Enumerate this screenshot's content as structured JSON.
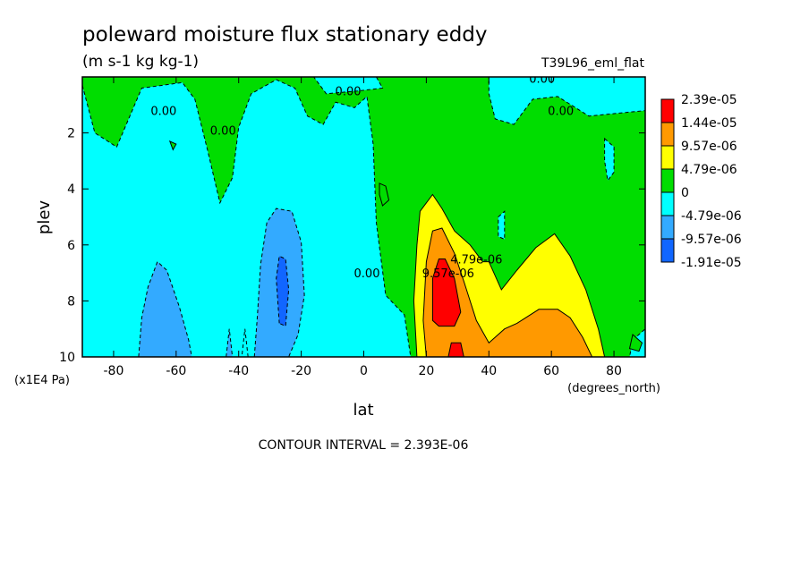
{
  "chart_data": {
    "type": "heatmap",
    "title": "poleward moisture flux stationary eddy",
    "subtitle": "(m s-1 kg kg-1)",
    "run_label": "T39L96_eml_flat",
    "xlabel": "lat",
    "xunits": "(degrees_north)",
    "ylabel": "plev",
    "yunits": "(x1E4 Pa)",
    "footer": "CONTOUR INTERVAL = 2.393E-06",
    "xlim": [
      -90,
      90
    ],
    "ylim": [
      10,
      0
    ],
    "x_ticks": [
      -80,
      -60,
      -40,
      -20,
      0,
      20,
      40,
      60,
      80
    ],
    "y_ticks": [
      2,
      4,
      6,
      8,
      10
    ],
    "colorbar": {
      "labels": [
        "2.39e-05",
        "1.44e-05",
        "9.57e-06",
        "4.79e-06",
        "0",
        "-4.79e-06",
        "-9.57e-06",
        "-1.91e-05"
      ],
      "colors": [
        "#ff0000",
        "#ff9900",
        "#ffff00",
        "#00dd00",
        "#00ffff",
        "#33aaff",
        "#1166ff"
      ]
    },
    "contour_labels": [
      {
        "text": "0.00",
        "lat": -64,
        "plev": 1.2
      },
      {
        "text": "0.00",
        "lat": -45,
        "plev": 1.9
      },
      {
        "text": "0.00",
        "lat": -5,
        "plev": 0.5
      },
      {
        "text": "0.00",
        "lat": 1,
        "plev": 7.0
      },
      {
        "text": "0.00",
        "lat": 57,
        "plev": 0.05
      },
      {
        "text": "0.00",
        "lat": 63,
        "plev": 1.2
      },
      {
        "text": "9.57e-06",
        "lat": 27,
        "plev": 7.0
      },
      {
        "text": "4.79e-06",
        "lat": 36,
        "plev": 6.5
      }
    ],
    "fields": [
      {
        "level": "0",
        "color": "#00dd00",
        "points": [
          [
            -90,
            0
          ],
          [
            90,
            0
          ],
          [
            90,
            10
          ],
          [
            -90,
            10
          ]
        ]
      },
      {
        "level": "-4.79e-06",
        "color": "#00ffff",
        "points": [
          [
            -90,
            0.3
          ],
          [
            -86,
            2.0
          ],
          [
            -79,
            2.5
          ],
          [
            -71,
            0.4
          ],
          [
            -58,
            0.2
          ],
          [
            -54,
            0.8
          ],
          [
            -50,
            2.6
          ],
          [
            -46,
            4.5
          ],
          [
            -42,
            3.6
          ],
          [
            -40,
            1.8
          ],
          [
            -36,
            0.6
          ],
          [
            -28,
            0.1
          ],
          [
            -22,
            0.4
          ],
          [
            -18,
            1.4
          ],
          [
            -13,
            1.7
          ],
          [
            -9,
            0.9
          ],
          [
            -3,
            1.1
          ],
          [
            1,
            0.7
          ],
          [
            3,
            2.4
          ],
          [
            4,
            5.2
          ],
          [
            7,
            7.8
          ],
          [
            13,
            8.5
          ],
          [
            15,
            10
          ],
          [
            -90,
            10
          ]
        ]
      },
      {
        "level": "-4.79e-06",
        "color": "#00ffff",
        "points": [
          [
            -16,
            0.0
          ],
          [
            4,
            0.0
          ],
          [
            6,
            0.4
          ],
          [
            -2,
            0.5
          ],
          [
            -12,
            0.6
          ]
        ]
      },
      {
        "level": "-4.79e-06",
        "color": "#00ffff",
        "points": [
          [
            40,
            0
          ],
          [
            90,
            0
          ],
          [
            90,
            1.2
          ],
          [
            72,
            1.4
          ],
          [
            62,
            0.7
          ],
          [
            54,
            0.8
          ],
          [
            48,
            1.7
          ],
          [
            42,
            1.5
          ],
          [
            40,
            0.6
          ]
        ]
      },
      {
        "level": "-4.79e-06",
        "color": "#00ffff",
        "points": [
          [
            86,
            9.4
          ],
          [
            90,
            9.0
          ],
          [
            90,
            10
          ],
          [
            85,
            10
          ]
        ]
      },
      {
        "level": "-9.57e-06",
        "color": "#33aaff",
        "points": [
          [
            -72,
            10
          ],
          [
            -71,
            8.6
          ],
          [
            -69,
            7.5
          ],
          [
            -66,
            6.6
          ],
          [
            -63,
            6.9
          ],
          [
            -59,
            8.2
          ],
          [
            -56,
            9.4
          ],
          [
            -55,
            10
          ]
        ]
      },
      {
        "level": "-9.57e-06",
        "color": "#33aaff",
        "points": [
          [
            -35,
            10
          ],
          [
            -34,
            8.5
          ],
          [
            -33,
            6.7
          ],
          [
            -31,
            5.2
          ],
          [
            -28,
            4.7
          ],
          [
            -23,
            4.8
          ],
          [
            -20,
            5.9
          ],
          [
            -19,
            7.8
          ],
          [
            -21,
            9.2
          ],
          [
            -24,
            10
          ]
        ]
      },
      {
        "level": "-9.57e-06",
        "color": "#33aaff",
        "points": [
          [
            -44,
            10
          ],
          [
            -43,
            9.0
          ],
          [
            -42,
            10
          ]
        ]
      },
      {
        "level": "-1.91e-05",
        "color": "#1166ff",
        "points": [
          [
            -27,
            8.8
          ],
          [
            -28,
            7.2
          ],
          [
            -27,
            6.4
          ],
          [
            -25,
            6.5
          ],
          [
            -24,
            7.6
          ],
          [
            -25,
            8.9
          ]
        ]
      },
      {
        "level": "4.79e-06",
        "color": "#ffff00",
        "points": [
          [
            17,
            10
          ],
          [
            16,
            8.0
          ],
          [
            17,
            6.0
          ],
          [
            18,
            4.8
          ],
          [
            22,
            4.2
          ],
          [
            25,
            4.7
          ],
          [
            29,
            5.5
          ],
          [
            34,
            6.0
          ],
          [
            38,
            6.6
          ],
          [
            40,
            6.6
          ],
          [
            44,
            7.6
          ],
          [
            49,
            6.9
          ],
          [
            55,
            6.1
          ],
          [
            61,
            5.6
          ],
          [
            66,
            6.4
          ],
          [
            71,
            7.6
          ],
          [
            75,
            9.0
          ],
          [
            77,
            10
          ]
        ]
      },
      {
        "level": "9.57e-06",
        "color": "#ff9900",
        "points": [
          [
            20,
            10
          ],
          [
            19,
            8.7
          ],
          [
            20,
            6.6
          ],
          [
            22,
            5.5
          ],
          [
            25,
            5.4
          ],
          [
            29,
            6.3
          ],
          [
            32,
            7.3
          ],
          [
            36,
            8.7
          ],
          [
            40,
            9.5
          ],
          [
            45,
            9.0
          ],
          [
            49,
            8.8
          ],
          [
            56,
            8.3
          ],
          [
            62,
            8.3
          ],
          [
            66,
            8.6
          ],
          [
            70,
            9.3
          ],
          [
            73,
            10
          ]
        ]
      },
      {
        "level": "1.44e-05",
        "color": "#ff0000",
        "points": [
          [
            22,
            8.7
          ],
          [
            22,
            7.2
          ],
          [
            24,
            6.5
          ],
          [
            26,
            6.5
          ],
          [
            29,
            7.2
          ],
          [
            31,
            8.4
          ],
          [
            29,
            8.9
          ],
          [
            24,
            8.9
          ]
        ]
      },
      {
        "level": "1.44e-05",
        "color": "#ff0000",
        "points": [
          [
            27,
            10
          ],
          [
            28,
            9.5
          ],
          [
            31,
            9.5
          ],
          [
            32,
            10
          ]
        ]
      },
      {
        "level": "0",
        "color": "#00dd00",
        "points": [
          [
            -62,
            2.3
          ],
          [
            -61,
            2.6
          ],
          [
            -60,
            2.4
          ]
        ]
      },
      {
        "level": "0",
        "color": "#00dd00",
        "points": [
          [
            5,
            3.8
          ],
          [
            7,
            3.9
          ],
          [
            8,
            4.4
          ],
          [
            6,
            4.6
          ],
          [
            5,
            4.2
          ]
        ]
      },
      {
        "level": "0",
        "color": "#00dd00",
        "points": [
          [
            86,
            9.2
          ],
          [
            89,
            9.5
          ],
          [
            88,
            9.8
          ],
          [
            85,
            9.7
          ]
        ]
      },
      {
        "level": "-4.79e-06",
        "color": "#00ffff",
        "points": [
          [
            77,
            2.2
          ],
          [
            80,
            2.5
          ],
          [
            80,
            3.4
          ],
          [
            78,
            3.7
          ],
          [
            77,
            3.0
          ]
        ]
      },
      {
        "level": "-4.79e-06",
        "color": "#00ffff",
        "points": [
          [
            43,
            5.0
          ],
          [
            45,
            4.8
          ],
          [
            45,
            5.8
          ],
          [
            43,
            5.7
          ]
        ]
      },
      {
        "level": "-4.79e-06",
        "color": "#00ffff",
        "points": [
          [
            -37,
            10
          ],
          [
            -38,
            9.0
          ],
          [
            -39,
            10
          ]
        ]
      }
    ]
  }
}
